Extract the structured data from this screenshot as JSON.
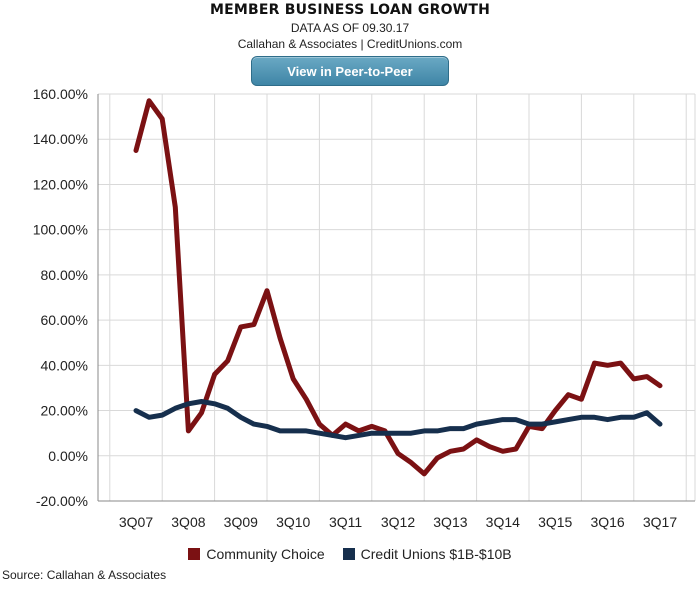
{
  "header": {
    "title": "MEMBER BUSINESS LOAN GROWTH",
    "subtitle": "DATA AS OF 09.30.17",
    "credit": "Callahan & Associates | CreditUnions.com",
    "button_label": "View in Peer-to-Peer"
  },
  "footer": {
    "source": "Source: Callahan & Associates"
  },
  "chart_data": {
    "type": "line",
    "title": "MEMBER BUSINESS LOAN GROWTH",
    "subtitle": "DATA AS OF 09.30.17",
    "x": [
      "3Q07",
      "4Q07",
      "1Q08",
      "2Q08",
      "3Q08",
      "4Q08",
      "1Q09",
      "2Q09",
      "3Q09",
      "4Q09",
      "1Q10",
      "2Q10",
      "3Q10",
      "4Q10",
      "1Q11",
      "2Q11",
      "3Q11",
      "4Q11",
      "1Q12",
      "2Q12",
      "3Q12",
      "4Q12",
      "1Q13",
      "2Q13",
      "3Q13",
      "4Q13",
      "1Q14",
      "2Q14",
      "3Q14",
      "4Q14",
      "1Q15",
      "2Q15",
      "3Q15",
      "4Q15",
      "1Q16",
      "2Q16",
      "3Q16",
      "4Q16",
      "1Q17",
      "2Q17",
      "3Q17"
    ],
    "tick_labels": [
      "3Q07",
      "3Q08",
      "3Q09",
      "3Q10",
      "3Q11",
      "3Q12",
      "3Q13",
      "3Q14",
      "3Q15",
      "3Q16",
      "3Q17"
    ],
    "yticks": [
      "160.00%",
      "140.00%",
      "120.00%",
      "100.00%",
      "80.00%",
      "60.00%",
      "40.00%",
      "20.00%",
      "0.00%",
      "-20.00%"
    ],
    "ylim": [
      -20,
      160
    ],
    "grid": true,
    "legend_position": "bottom",
    "series": [
      {
        "name": "Community Choice",
        "color": "#7b1113",
        "values": [
          135,
          157,
          149,
          110,
          11,
          19,
          36,
          42,
          57,
          58,
          73,
          52,
          34,
          25,
          14,
          9,
          14,
          11,
          13,
          11,
          1,
          -3,
          -8,
          -1,
          2,
          3,
          7,
          4,
          2,
          3,
          13,
          12,
          20,
          27,
          25,
          41,
          40,
          41,
          34,
          35,
          31
        ]
      },
      {
        "name": "Credit Unions $1B-$10B",
        "color": "#162f4d",
        "values": [
          20,
          17,
          18,
          21,
          23,
          24,
          23,
          21,
          17,
          14,
          13,
          11,
          11,
          11,
          10,
          9,
          8,
          9,
          10,
          10,
          10,
          10,
          11,
          11,
          12,
          12,
          14,
          15,
          16,
          16,
          14,
          14,
          15,
          16,
          17,
          17,
          16,
          17,
          17,
          19,
          14
        ]
      }
    ]
  }
}
